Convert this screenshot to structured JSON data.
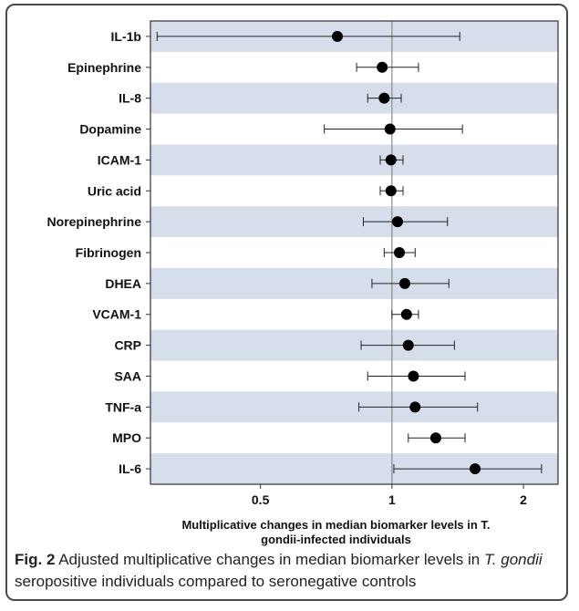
{
  "chart_data": {
    "type": "scatter",
    "subtype": "forest-plot",
    "xlabel_line1": "Multiplicative changes in median biomarker levels in T.",
    "xlabel_line2": "gondii-infected individuals",
    "ylabel": "",
    "x_scale": "log",
    "xlim": [
      0.28,
      2.4
    ],
    "x_ticks": [
      0.5,
      1,
      2
    ],
    "x_tick_labels": [
      "0.5",
      "1",
      "2"
    ],
    "reference_line": 1,
    "grid": false,
    "row_banding_color": "#d6deec",
    "point_color": "#000000",
    "categories": [
      "IL-1b",
      "Epinephrine",
      "IL-8",
      "Dopamine",
      "ICAM-1",
      "Uric acid",
      "Norepinephrine",
      "Fibrinogen",
      "DHEA",
      "VCAM-1",
      "CRP",
      "SAA",
      "TNF-a",
      "MPO",
      "IL-6"
    ],
    "estimates": [
      0.75,
      0.95,
      0.96,
      0.99,
      0.995,
      0.995,
      1.03,
      1.04,
      1.07,
      1.08,
      1.09,
      1.12,
      1.13,
      1.26,
      1.55
    ],
    "ci_lower": [
      0.29,
      0.83,
      0.88,
      0.7,
      0.94,
      0.94,
      0.86,
      0.96,
      0.9,
      1.0,
      0.85,
      0.88,
      0.84,
      1.09,
      1.01
    ],
    "ci_upper": [
      1.43,
      1.15,
      1.05,
      1.45,
      1.06,
      1.06,
      1.34,
      1.13,
      1.35,
      1.15,
      1.39,
      1.47,
      1.57,
      1.47,
      2.2
    ]
  },
  "caption": {
    "label": "Fig. 2",
    "text_part1": " Adjusted multiplicative changes in median biomarker levels in ",
    "italic_part": "T. gondii",
    "text_part2": " seropositive individuals compared to seronegative controls"
  }
}
